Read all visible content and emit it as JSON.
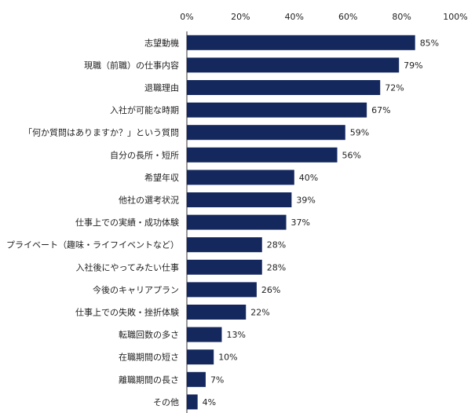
{
  "chart_data": {
    "type": "bar",
    "orientation": "horizontal",
    "categories": [
      "志望動機",
      "現職（前職）の仕事内容",
      "退職理由",
      "入社が可能な時期",
      "「何か質問はありますか？」という質問",
      "自分の長所・短所",
      "希望年収",
      "他社の選考状況",
      "仕事上での実績・成功体験",
      "プライベート（趣味・ライフイベントなど）",
      "入社後にやってみたい仕事",
      "今後のキャリアプラン",
      "仕事上での失敗・挫折体験",
      "転職回数の多さ",
      "在職期間の短さ",
      "離職期間の長さ",
      "その他"
    ],
    "values": [
      85,
      79,
      72,
      67,
      59,
      56,
      40,
      39,
      37,
      28,
      28,
      26,
      22,
      13,
      10,
      7,
      4
    ],
    "value_labels": [
      "85%",
      "79%",
      "72%",
      "67%",
      "59%",
      "56%",
      "40%",
      "39%",
      "37%",
      "28%",
      "28%",
      "26%",
      "22%",
      "13%",
      "10%",
      "7%",
      "4%"
    ],
    "xlim": [
      0,
      100
    ],
    "xticks": [
      0,
      20,
      40,
      60,
      80,
      100
    ],
    "xtick_labels": [
      "0%",
      "20%",
      "40%",
      "60%",
      "80%",
      "100%"
    ],
    "axis_position": "top",
    "grid": false,
    "legend": "none",
    "title": "",
    "xlabel": "",
    "ylabel": "",
    "bar_color": "#14285e"
  }
}
